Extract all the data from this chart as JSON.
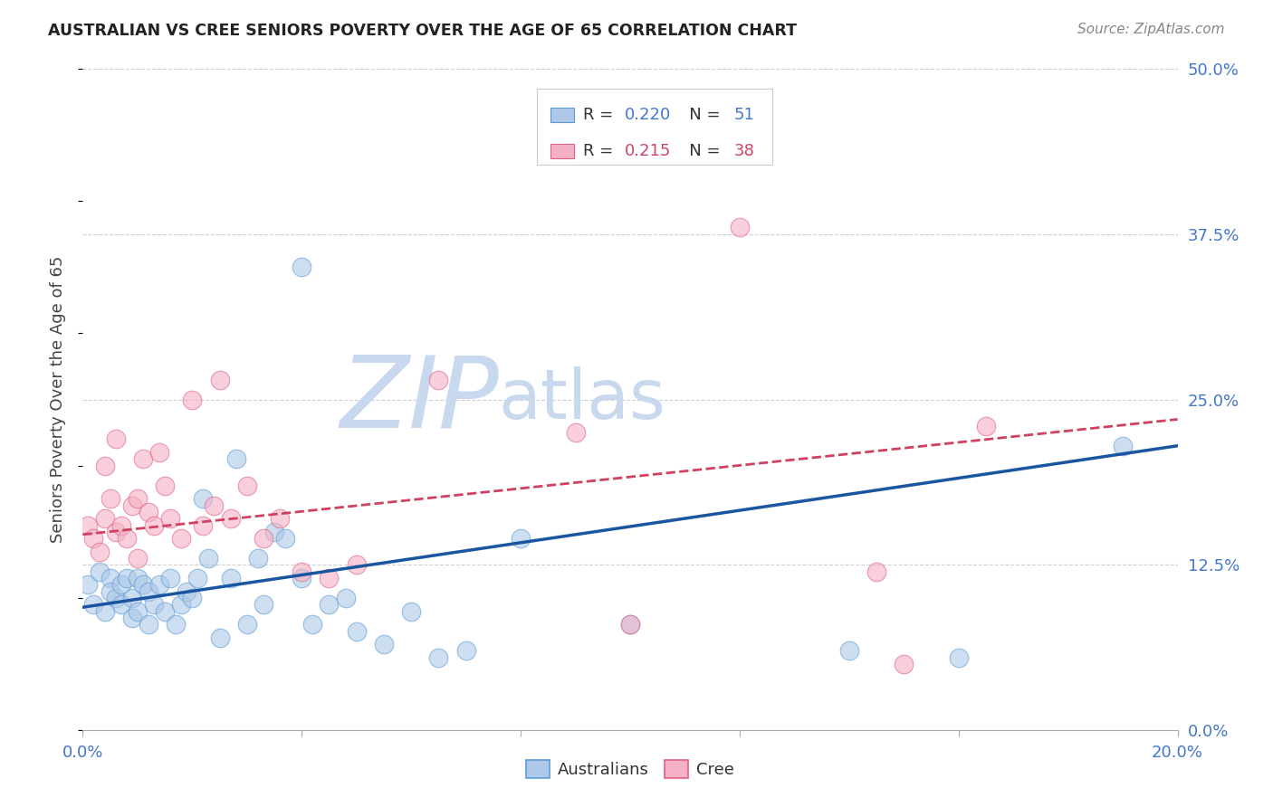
{
  "title": "AUSTRALIAN VS CREE SENIORS POVERTY OVER THE AGE OF 65 CORRELATION CHART",
  "source": "Source: ZipAtlas.com",
  "ylabel": "Seniors Poverty Over the Age of 65",
  "xlim": [
    0.0,
    0.2
  ],
  "ylim": [
    0.0,
    0.5
  ],
  "background_color": "#ffffff",
  "grid_color": "#d0d0d0",
  "watermark_zip": "ZIP",
  "watermark_atlas": "atlas",
  "watermark_color_zip": "#c8d8ee",
  "watermark_color_atlas": "#c8d8ee",
  "australians_color": "#adc8e8",
  "australians_edge_color": "#5b9bd5",
  "cree_color": "#f4b0c4",
  "cree_edge_color": "#e06080",
  "trend_aus_color": "#1a56a0",
  "trend_cree_color": "#d04060",
  "R_aus": 0.22,
  "N_aus": 51,
  "R_cree": 0.215,
  "N_cree": 38,
  "aus_trend_y0": 0.093,
  "aus_trend_y1": 0.215,
  "cree_trend_y0": 0.148,
  "cree_trend_y1": 0.235,
  "australians_x": [
    0.001,
    0.002,
    0.003,
    0.004,
    0.005,
    0.005,
    0.006,
    0.007,
    0.007,
    0.008,
    0.009,
    0.009,
    0.01,
    0.01,
    0.011,
    0.012,
    0.012,
    0.013,
    0.014,
    0.015,
    0.016,
    0.017,
    0.018,
    0.019,
    0.02,
    0.021,
    0.022,
    0.023,
    0.025,
    0.027,
    0.028,
    0.03,
    0.032,
    0.033,
    0.035,
    0.037,
    0.04,
    0.042,
    0.045,
    0.048,
    0.05,
    0.055,
    0.06,
    0.065,
    0.07,
    0.04,
    0.08,
    0.1,
    0.14,
    0.16,
    0.19
  ],
  "australians_y": [
    0.11,
    0.095,
    0.12,
    0.09,
    0.115,
    0.105,
    0.1,
    0.11,
    0.095,
    0.115,
    0.085,
    0.1,
    0.09,
    0.115,
    0.11,
    0.08,
    0.105,
    0.095,
    0.11,
    0.09,
    0.115,
    0.08,
    0.095,
    0.105,
    0.1,
    0.115,
    0.175,
    0.13,
    0.07,
    0.115,
    0.205,
    0.08,
    0.13,
    0.095,
    0.15,
    0.145,
    0.115,
    0.08,
    0.095,
    0.1,
    0.075,
    0.065,
    0.09,
    0.055,
    0.06,
    0.35,
    0.145,
    0.08,
    0.06,
    0.055,
    0.215
  ],
  "cree_x": [
    0.001,
    0.002,
    0.003,
    0.004,
    0.004,
    0.005,
    0.006,
    0.006,
    0.007,
    0.008,
    0.009,
    0.01,
    0.01,
    0.011,
    0.012,
    0.013,
    0.014,
    0.015,
    0.016,
    0.018,
    0.02,
    0.022,
    0.024,
    0.025,
    0.027,
    0.03,
    0.033,
    0.036,
    0.04,
    0.045,
    0.05,
    0.065,
    0.09,
    0.1,
    0.12,
    0.145,
    0.15,
    0.165
  ],
  "cree_y": [
    0.155,
    0.145,
    0.135,
    0.2,
    0.16,
    0.175,
    0.22,
    0.15,
    0.155,
    0.145,
    0.17,
    0.13,
    0.175,
    0.205,
    0.165,
    0.155,
    0.21,
    0.185,
    0.16,
    0.145,
    0.25,
    0.155,
    0.17,
    0.265,
    0.16,
    0.185,
    0.145,
    0.16,
    0.12,
    0.115,
    0.125,
    0.265,
    0.225,
    0.08,
    0.38,
    0.12,
    0.05,
    0.23
  ]
}
